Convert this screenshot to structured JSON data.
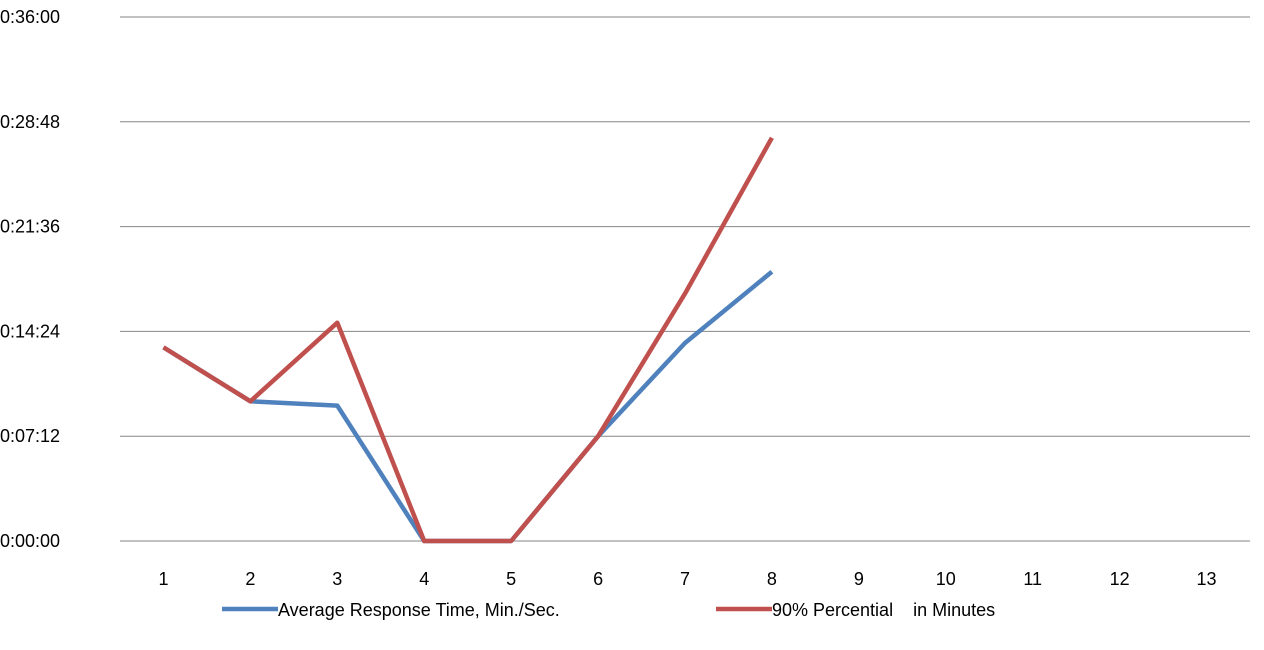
{
  "chart_data": {
    "type": "line",
    "x": [
      "1",
      "2",
      "3",
      "4",
      "5",
      "6",
      "7",
      "8",
      "9",
      "10",
      "11",
      "12",
      "13"
    ],
    "y_ticks": [
      "0:00:00",
      "0:07:12",
      "0:14:24",
      "0:21:36",
      "0:28:48",
      "0:36:00"
    ],
    "ylim_minutes": [
      0,
      36
    ],
    "grid": true,
    "legend_position": "bottom",
    "series": [
      {
        "name": "Average Response Time, Min./Sec.",
        "color": "#4F81BD",
        "values_minutes": [
          13.3,
          9.6,
          9.3,
          0,
          0,
          7.2,
          13.6,
          18.5
        ]
      },
      {
        "name": "90% Percential    in Minutes",
        "color": "#C0504D",
        "values_minutes": [
          13.3,
          9.6,
          15.0,
          0,
          0,
          7.2,
          17.0,
          27.7
        ]
      }
    ]
  }
}
